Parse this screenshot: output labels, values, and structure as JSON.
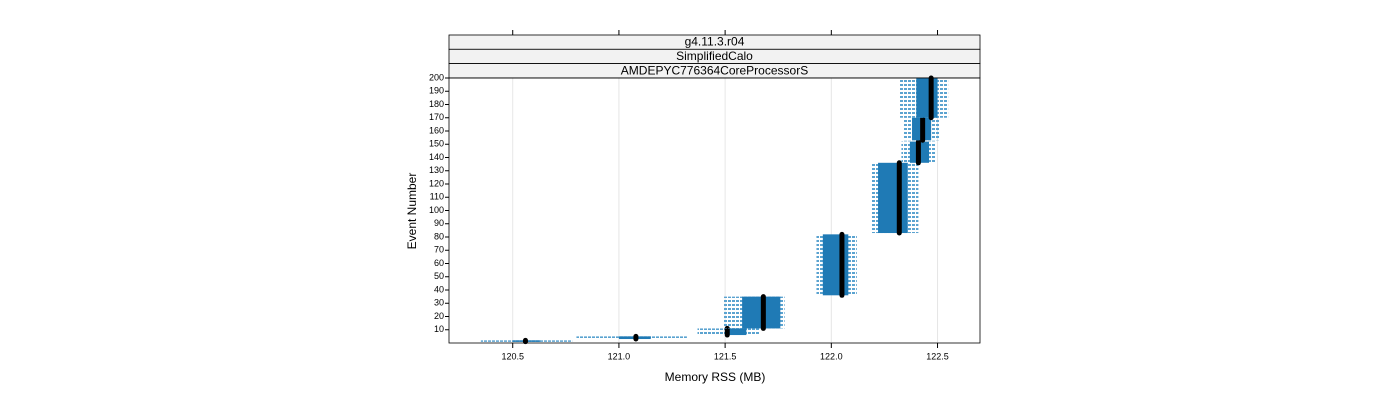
{
  "chart_data": {
    "type": "range_box",
    "strips": [
      "g4.11.3.r04",
      "SimplifiedCalo",
      "AMDEPYC776364CoreProcessorS"
    ],
    "x_label": "Memory RSS (MB)",
    "y_label": "Event Number",
    "xlim": [
      120.2,
      122.7
    ],
    "ylim": [
      0,
      200
    ],
    "xticks": [
      120.5,
      {
        "value": 121.0,
        "label": "121.0"
      },
      121.5,
      {
        "value": 122.0,
        "label": "122.0"
      },
      122.5
    ],
    "yticks": [
      10,
      20,
      30,
      40,
      50,
      60,
      70,
      80,
      90,
      100,
      110,
      120,
      130,
      140,
      150,
      160,
      170,
      180,
      190,
      200
    ],
    "grid": true,
    "box_color": "#1f7ab5",
    "median_color": "#000000",
    "groups": [
      {
        "events_start": 1,
        "events_end": 2,
        "median": 120.56,
        "box_low": 120.5,
        "box_high": 120.63,
        "whisker_low": 120.35,
        "whisker_high": 120.78
      },
      {
        "events_start": 3,
        "events_end": 5,
        "median": 121.08,
        "box_low": 121.0,
        "box_high": 121.15,
        "whisker_low": 120.8,
        "whisker_high": 121.32
      },
      {
        "events_start": 6,
        "events_end": 11,
        "median": 121.51,
        "box_low": 121.5,
        "box_high": 121.6,
        "whisker_low": 121.37,
        "whisker_high": 121.66
      },
      {
        "events_start": 11,
        "events_end": 35,
        "median": 121.68,
        "box_low": 121.58,
        "box_high": 121.76,
        "whisker_low": 121.49,
        "whisker_high": 121.78
      },
      {
        "events_start": 36,
        "events_end": 82,
        "median": 122.05,
        "box_low": 121.96,
        "box_high": 122.08,
        "whisker_low": 121.93,
        "whisker_high": 122.12
      },
      {
        "events_start": 83,
        "events_end": 136,
        "median": 122.32,
        "box_low": 122.22,
        "box_high": 122.36,
        "whisker_low": 122.19,
        "whisker_high": 122.41
      },
      {
        "events_start": 136,
        "events_end": 152,
        "median": 122.41,
        "box_low": 122.37,
        "box_high": 122.46,
        "whisker_low": 122.33,
        "whisker_high": 122.49
      },
      {
        "events_start": 153,
        "events_end": 170,
        "median": 122.43,
        "box_low": 122.38,
        "box_high": 122.47,
        "whisker_low": 122.34,
        "whisker_high": 122.51
      },
      {
        "events_start": 170,
        "events_end": 200,
        "median": 122.47,
        "box_low": 122.4,
        "box_high": 122.5,
        "whisker_low": 122.32,
        "whisker_high": 122.55
      }
    ]
  }
}
